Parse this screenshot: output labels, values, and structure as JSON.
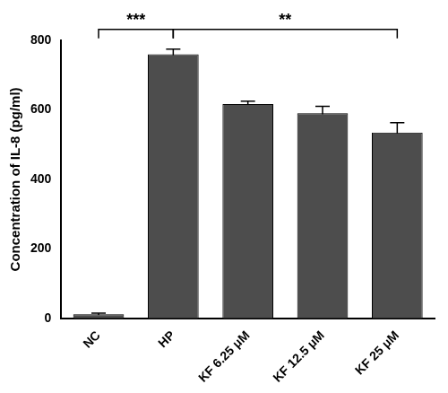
{
  "chart_data": {
    "type": "bar",
    "categories": [
      "NC",
      "HP",
      "KF 6.25 μM",
      "KF 12.5 μM",
      "KF 25 μM"
    ],
    "values": [
      12,
      760,
      617,
      590,
      535
    ],
    "error": [
      3,
      15,
      8,
      20,
      28
    ],
    "color": "#4d4d4d",
    "y_label": "Concentration of IL-8 (pg/ml)",
    "ylim": [
      0,
      800
    ],
    "yticks": [
      0,
      200,
      400,
      600,
      800
    ],
    "grid": false,
    "annotations": [
      {
        "from": "NC",
        "to": "HP",
        "label": "***"
      },
      {
        "from": "HP",
        "to": "KF 25 μM",
        "label": "**"
      }
    ]
  }
}
